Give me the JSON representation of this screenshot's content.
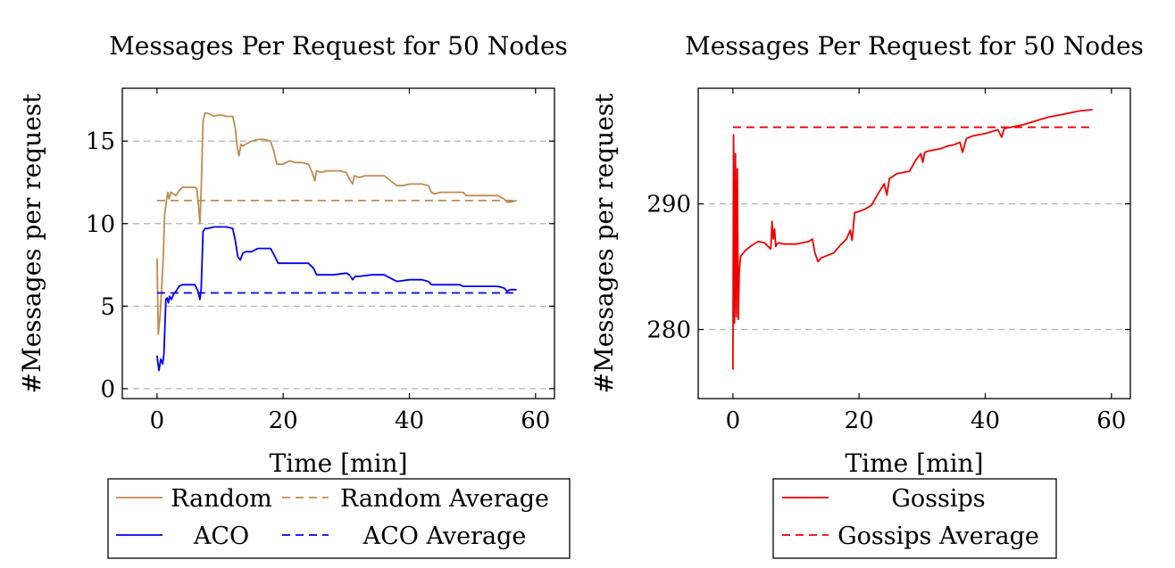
{
  "chart_data": [
    {
      "type": "line",
      "title": "Messages Per Request for 50 Nodes",
      "xlabel": "Time [min]",
      "ylabel": "#Messages per request",
      "xlim": [
        -5.5,
        63
      ],
      "ylim": [
        -0.6,
        18.2
      ],
      "xticks": [
        0,
        20,
        40,
        60
      ],
      "yticks": [
        0,
        5,
        10,
        15
      ],
      "grid": "horizontal-dashed",
      "legend": {
        "placement": "bottom",
        "columns": 2
      },
      "series": [
        {
          "name": "Random",
          "color": "#c08a50",
          "dash": "solid",
          "x": [
            0,
            0.2,
            0.5,
            0.8,
            1.0,
            1.2,
            1.5,
            1.7,
            1.9,
            2.2,
            2.6,
            3,
            3.5,
            4,
            5,
            6,
            6.3,
            6.6,
            6.8,
            7.0,
            7.3,
            7.6,
            8,
            9,
            10,
            11,
            12,
            12.4,
            12.7,
            13,
            13.3,
            13.6,
            14,
            15,
            16,
            17,
            18,
            18.5,
            19,
            20,
            21,
            22,
            23,
            24,
            24.6,
            25,
            25.3,
            26,
            27,
            28,
            29,
            30,
            30.5,
            31,
            31.3,
            32,
            33,
            34,
            35,
            36,
            37,
            38,
            39,
            40,
            41,
            42,
            43,
            43.5,
            44,
            45,
            46,
            47,
            48,
            48.5,
            49,
            50,
            51,
            52,
            53,
            54,
            55,
            55.5,
            56,
            57
          ],
          "y": [
            7.9,
            3.3,
            4.5,
            6.5,
            8.0,
            10.5,
            11.4,
            11.9,
            11.5,
            11.9,
            11.8,
            11.7,
            12.0,
            12.2,
            12.2,
            12.2,
            12.1,
            11.0,
            10.0,
            12.0,
            16.2,
            16.7,
            16.7,
            16.5,
            16.6,
            16.5,
            16.5,
            15.8,
            14.7,
            14.1,
            14.8,
            14.7,
            14.8,
            15.0,
            15.1,
            15.1,
            15.0,
            14.4,
            13.6,
            13.6,
            13.8,
            13.7,
            13.7,
            13.6,
            13.1,
            12.6,
            13.2,
            13.1,
            13.2,
            13.2,
            13.2,
            13.1,
            12.7,
            12.4,
            12.9,
            12.8,
            12.9,
            12.9,
            12.9,
            12.9,
            12.6,
            12.3,
            12.3,
            12.4,
            12.4,
            12.4,
            12.3,
            11.9,
            11.8,
            11.9,
            11.9,
            11.9,
            11.9,
            11.9,
            11.7,
            11.7,
            11.7,
            11.7,
            11.7,
            11.7,
            11.5,
            11.3,
            11.3,
            11.4
          ]
        },
        {
          "name": "Random Average",
          "color": "#c08a50",
          "dash": "dashed",
          "x": [
            0,
            57
          ],
          "y": [
            11.4,
            11.4
          ]
        },
        {
          "name": "ACO",
          "color": "#0000ee",
          "dash": "solid",
          "x": [
            0,
            0.3,
            0.6,
            0.9,
            1.1,
            1.4,
            1.6,
            1.8,
            2.0,
            2.3,
            2.6,
            3,
            3.5,
            4,
            5,
            6,
            6.5,
            6.8,
            7.0,
            7.3,
            7.6,
            8,
            9,
            10,
            11,
            12,
            12.4,
            12.8,
            13.2,
            13.6,
            14,
            15,
            16,
            17,
            18,
            18.7,
            19.2,
            20,
            22,
            24,
            24.8,
            25.3,
            26,
            28,
            30,
            30.5,
            31,
            31.4,
            32,
            34,
            36,
            37,
            38,
            40,
            42,
            43,
            43.5,
            44,
            46,
            48,
            48.5,
            49,
            50,
            52,
            54,
            55,
            55.5,
            56,
            57
          ],
          "y": [
            2.0,
            1.1,
            1.8,
            1.5,
            2.1,
            5.4,
            5.5,
            5.2,
            5.6,
            5.4,
            5.7,
            5.9,
            6.2,
            6.3,
            6.3,
            6.3,
            5.9,
            5.4,
            6.0,
            9.5,
            9.7,
            9.7,
            9.8,
            9.8,
            9.8,
            9.7,
            9.0,
            8.0,
            7.8,
            8.2,
            8.3,
            8.3,
            8.5,
            8.5,
            8.5,
            8.0,
            7.6,
            7.6,
            7.6,
            7.6,
            7.3,
            6.9,
            6.9,
            6.9,
            7.0,
            6.9,
            6.6,
            6.8,
            6.8,
            6.9,
            6.9,
            6.7,
            6.5,
            6.6,
            6.6,
            6.5,
            6.3,
            6.3,
            6.3,
            6.3,
            6.2,
            6.2,
            6.2,
            6.2,
            6.2,
            6.1,
            5.9,
            6.0,
            6.0
          ]
        },
        {
          "name": "ACO Average",
          "color": "#0000ee",
          "dash": "dashed",
          "x": [
            0,
            57
          ],
          "y": [
            5.8,
            5.8
          ]
        }
      ]
    },
    {
      "type": "line",
      "title": "Messages Per Request for 50 Nodes",
      "xlabel": "Time [min]",
      "ylabel": "#Messages per request",
      "xlim": [
        -5.5,
        63
      ],
      "ylim": [
        274.5,
        299.2
      ],
      "xticks": [
        0,
        20,
        40,
        60
      ],
      "yticks": [
        280,
        290
      ],
      "grid": "horizontal-dashed",
      "legend": {
        "placement": "bottom",
        "columns": 1
      },
      "series": [
        {
          "name": "Gossips",
          "color": "#ee0000",
          "dash": "solid",
          "x": [
            0,
            0.1,
            0.25,
            0.4,
            0.55,
            0.7,
            0.85,
            1.0,
            1.2,
            1.5,
            2,
            3,
            4,
            5,
            6,
            6.2,
            6.4,
            6.6,
            6.8,
            7.0,
            7.3,
            8,
            10,
            12,
            12.6,
            13,
            13.5,
            14,
            15,
            16,
            17,
            18,
            18.6,
            18.9,
            19.3,
            20,
            21,
            22,
            23,
            24,
            24.4,
            24.8,
            25.4,
            26,
            28,
            29,
            29.8,
            30.1,
            30.4,
            31,
            32,
            33,
            34,
            35,
            36,
            36.4,
            37,
            38,
            40,
            42,
            42.6,
            43,
            44,
            46,
            48,
            50,
            52,
            54,
            55,
            57
          ],
          "y": [
            276.8,
            295.5,
            280.5,
            294.0,
            281.0,
            292.8,
            280.8,
            284.5,
            285.8,
            286.0,
            286.3,
            286.7,
            287.0,
            286.9,
            286.4,
            288.6,
            287.2,
            288.0,
            286.6,
            286.8,
            286.9,
            286.8,
            286.8,
            287.0,
            287.2,
            286.1,
            285.4,
            285.7,
            285.9,
            286.1,
            286.7,
            287.2,
            287.9,
            287.1,
            289.3,
            289.4,
            289.6,
            289.9,
            290.8,
            291.6,
            290.7,
            292.0,
            292.2,
            292.4,
            292.6,
            293.5,
            294.0,
            293.3,
            294.1,
            294.2,
            294.3,
            294.4,
            294.6,
            294.7,
            294.9,
            294.1,
            295.2,
            295.4,
            295.6,
            295.9,
            295.3,
            296.0,
            296.1,
            296.3,
            296.6,
            296.9,
            297.1,
            297.3,
            297.4,
            297.5
          ]
        },
        {
          "name": "Gossips Average",
          "color": "#ee0000",
          "dash": "dashed",
          "x": [
            0,
            57
          ],
          "y": [
            296.1,
            296.1
          ]
        }
      ]
    }
  ]
}
